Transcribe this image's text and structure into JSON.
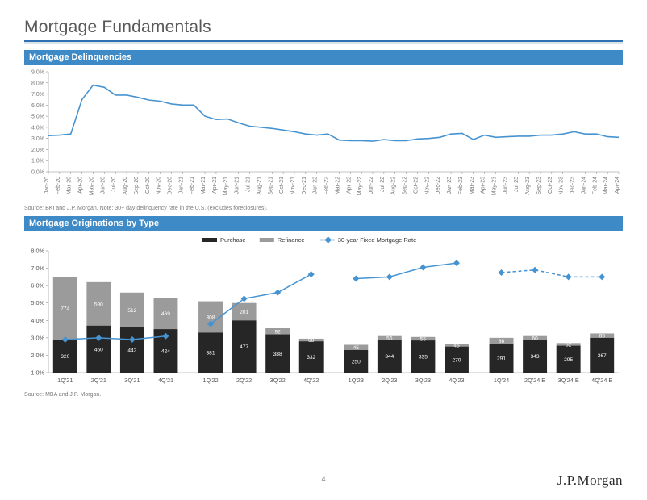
{
  "title": "Mortgage Fundamentals",
  "section1": {
    "label": "Mortgage Delinquencies",
    "source": "Source: BKI and J.P. Morgan.  Note: 30+ day delinquency rate in the U.S. (excludes foreclosures).",
    "chart": {
      "type": "line",
      "ylim": [
        0,
        9
      ],
      "ytick_step": 1.0,
      "y_suffix": ".0%",
      "line_color": "#4693d1",
      "line_width": 1.6,
      "axis_color": "#888",
      "grid_off": true,
      "label_font_size": 7.0,
      "label_color": "#777",
      "x_labels": [
        "Jan-20",
        "Feb-20",
        "Mar-20",
        "Apr-20",
        "May-20",
        "Jun-20",
        "Jul-20",
        "Aug-20",
        "Sep-20",
        "Oct-20",
        "Nov-20",
        "Dec-20",
        "Jan-21",
        "Feb-21",
        "Mar-21",
        "Apr-21",
        "May-21",
        "Jun-21",
        "Jul-21",
        "Aug-21",
        "Sep-21",
        "Oct-21",
        "Nov-21",
        "Dec-21",
        "Jan-22",
        "Feb-22",
        "Mar-22",
        "Apr-22",
        "May-22",
        "Jun-22",
        "Jul-22",
        "Aug-22",
        "Sep-22",
        "Oct-22",
        "Nov-22",
        "Dec-22",
        "Jan-23",
        "Feb-23",
        "Mar-23",
        "Apr-23",
        "May-23",
        "Jun-23",
        "Jul-23",
        "Aug-23",
        "Sep-23",
        "Oct-23",
        "Nov-23",
        "Dec-23",
        "Jan-24",
        "Feb-24",
        "Mar-24",
        "Apr-24"
      ],
      "values": [
        3.25,
        3.3,
        3.4,
        6.5,
        7.8,
        7.6,
        6.9,
        6.9,
        6.7,
        6.45,
        6.35,
        6.1,
        6.0,
        6.0,
        5.0,
        4.7,
        4.75,
        4.4,
        4.1,
        4.0,
        3.9,
        3.75,
        3.6,
        3.4,
        3.3,
        3.4,
        2.85,
        2.8,
        2.8,
        2.75,
        2.9,
        2.8,
        2.8,
        2.95,
        3.0,
        3.1,
        3.4,
        3.45,
        2.9,
        3.3,
        3.1,
        3.15,
        3.2,
        3.2,
        3.3,
        3.3,
        3.4,
        3.6,
        3.4,
        3.4,
        3.15,
        3.1
      ]
    }
  },
  "section2": {
    "label": "Mortgage Originations by Type",
    "source": "Source: MBA and J.P. Morgan.",
    "chart": {
      "type": "combo_stacked_bar_line",
      "legend": {
        "items": [
          {
            "label": "Purchase",
            "color": "#262626",
            "swatch": "rect"
          },
          {
            "label": "Refinance",
            "color": "#9b9b9b",
            "swatch": "rect"
          },
          {
            "label": "30-year Fixed Mortgage Rate",
            "color": "#4693d1",
            "swatch": "line-marker"
          }
        ],
        "font_size": 7.5,
        "color": "#333"
      },
      "ylim": [
        1,
        8
      ],
      "ytick_step": 1.0,
      "y_suffix": ".0%",
      "bar_colors": {
        "purchase": "#262626",
        "refinance": "#9b9b9b"
      },
      "data_label_color": "#ffffff",
      "data_label_font_size": 6.6,
      "line": {
        "color": "#4693d1",
        "width": 1.5,
        "marker": "diamond",
        "marker_size": 4
      },
      "axis_color": "#888",
      "label_font_size": 7.3,
      "label_color": "#555",
      "group_gap": 14,
      "bar_width": 0.72,
      "groups": [
        {
          "labels": [
            "1Q'21",
            "2Q'21",
            "3Q'21",
            "4Q'21"
          ],
          "purchase": [
            320,
            460,
            442,
            424
          ],
          "refinance": [
            774,
            590,
            512,
            469
          ],
          "stack_top": [
            6.5,
            6.2,
            5.6,
            5.3
          ],
          "purchase_top": [
            2.9,
            3.7,
            3.6,
            3.5
          ],
          "rate": [
            2.9,
            3.0,
            2.9,
            3.1
          ],
          "dashed": false
        },
        {
          "labels": [
            "1Q'22",
            "2Q'22",
            "3Q'22",
            "4Q'22"
          ],
          "purchase": [
            381,
            477,
            388,
            332
          ],
          "refinance": [
            308,
            201,
            92,
            68
          ],
          "stack_top": [
            5.1,
            5.0,
            3.55,
            2.95
          ],
          "purchase_top": [
            3.3,
            4.0,
            3.2,
            2.8
          ],
          "rate": [
            3.8,
            5.25,
            5.6,
            6.65
          ],
          "dashed": false
        },
        {
          "labels": [
            "1Q'23",
            "2Q'23",
            "3Q'23",
            "4Q'23"
          ],
          "purchase": [
            250,
            344,
            335,
            270
          ],
          "refinance": [
            45,
            56,
            55,
            45
          ],
          "stack_top": [
            2.6,
            3.1,
            3.05,
            2.65
          ],
          "purchase_top": [
            2.3,
            2.9,
            2.85,
            2.5
          ],
          "rate": [
            6.4,
            6.5,
            7.05,
            7.3
          ],
          "dashed": false
        },
        {
          "labels": [
            "1Q'24",
            "2Q'24 E",
            "3Q'24 E",
            "4Q'24 E"
          ],
          "purchase": [
            291,
            343,
            295,
            367
          ],
          "refinance": [
            86,
            60,
            52,
            65
          ],
          "stack_top": [
            3.0,
            3.1,
            2.7,
            3.25
          ],
          "purchase_top": [
            2.65,
            2.9,
            2.55,
            3.0
          ],
          "rate": [
            6.75,
            6.9,
            6.5,
            6.5
          ],
          "dashed": true
        }
      ]
    }
  },
  "page_number": "4",
  "logo": "J.P.Morgan",
  "colors": {
    "title_rule": "#2f6fb3",
    "section_bar": "#3e8ac7",
    "bg": "#ffffff"
  }
}
